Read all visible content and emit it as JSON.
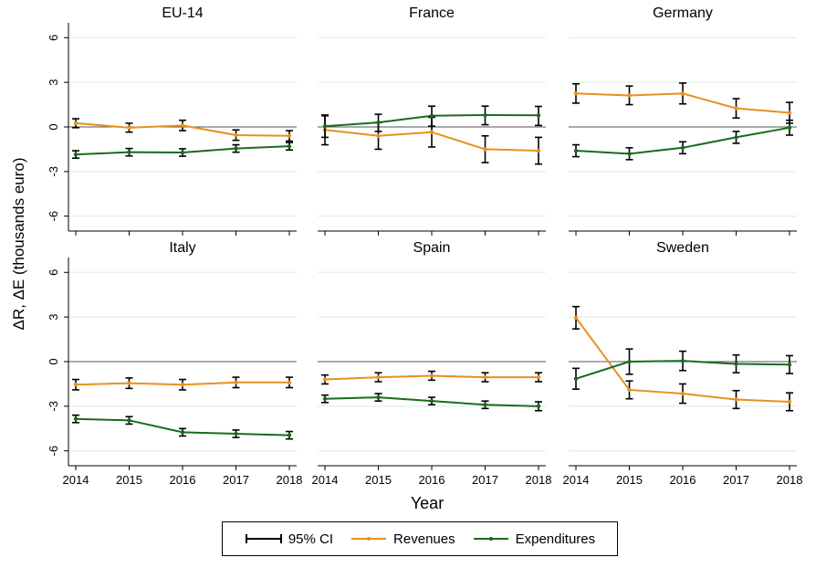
{
  "chart_data": {
    "type": "line",
    "ylabel": "ΔR, ΔE (thousands euro)",
    "xlabel": "Year",
    "x": [
      2014,
      2015,
      2016,
      2017,
      2018
    ],
    "ylim": [
      -7,
      7
    ],
    "yticks": [
      6,
      3,
      0,
      -3,
      -6
    ],
    "ytick_labels": [
      "6",
      "3",
      "0",
      "-3",
      "-6"
    ],
    "xtick_labels": [
      "2014",
      "2015",
      "2016",
      "2017",
      "2018"
    ],
    "colors": {
      "revenues": "#e8901f",
      "expenditures": "#1a6b1a",
      "ci": "#000000",
      "grid": "#e3efe8"
    },
    "legend": {
      "position": "bottom",
      "items": [
        "95% CI",
        "Revenues",
        "Expenditures"
      ]
    },
    "panels": [
      {
        "title": "EU-14",
        "series": [
          {
            "name": "Revenues",
            "values": [
              0.25,
              -0.05,
              0.1,
              -0.55,
              -0.6
            ],
            "ci_low": [
              -0.05,
              -0.35,
              -0.25,
              -0.9,
              -0.95
            ],
            "ci_high": [
              0.55,
              0.25,
              0.45,
              -0.2,
              -0.25
            ]
          },
          {
            "name": "Expenditures",
            "values": [
              -1.85,
              -1.7,
              -1.72,
              -1.45,
              -1.3
            ],
            "ci_low": [
              -2.1,
              -1.95,
              -1.97,
              -1.7,
              -1.55
            ],
            "ci_high": [
              -1.6,
              -1.45,
              -1.47,
              -1.2,
              -1.05
            ]
          }
        ]
      },
      {
        "title": "France",
        "series": [
          {
            "name": "Revenues",
            "values": [
              -0.2,
              -0.6,
              -0.35,
              -1.5,
              -1.6
            ],
            "ci_low": [
              -1.2,
              -1.5,
              -1.35,
              -2.4,
              -2.5
            ],
            "ci_high": [
              0.8,
              0.3,
              0.65,
              -0.6,
              -0.7
            ]
          },
          {
            "name": "Expenditures",
            "values": [
              0.05,
              0.3,
              0.75,
              0.8,
              0.78
            ],
            "ci_low": [
              -0.7,
              -0.3,
              0.05,
              0.15,
              0.1
            ],
            "ci_high": [
              0.75,
              0.85,
              1.4,
              1.4,
              1.38
            ]
          }
        ]
      },
      {
        "title": "Germany",
        "series": [
          {
            "name": "Revenues",
            "values": [
              2.25,
              2.12,
              2.25,
              1.25,
              0.95
            ],
            "ci_low": [
              1.6,
              1.5,
              1.55,
              0.6,
              0.25
            ],
            "ci_high": [
              2.9,
              2.75,
              2.95,
              1.9,
              1.65
            ]
          },
          {
            "name": "Expenditures",
            "values": [
              -1.6,
              -1.8,
              -1.4,
              -0.7,
              -0.05
            ],
            "ci_low": [
              -2.0,
              -2.2,
              -1.8,
              -1.1,
              -0.55
            ],
            "ci_high": [
              -1.2,
              -1.4,
              -1.0,
              -0.3,
              0.45
            ]
          }
        ]
      },
      {
        "title": "Italy",
        "series": [
          {
            "name": "Revenues",
            "values": [
              -1.55,
              -1.45,
              -1.55,
              -1.4,
              -1.4
            ],
            "ci_low": [
              -1.9,
              -1.8,
              -1.9,
              -1.75,
              -1.75
            ],
            "ci_high": [
              -1.2,
              -1.1,
              -1.2,
              -1.05,
              -1.05
            ]
          },
          {
            "name": "Expenditures",
            "values": [
              -3.85,
              -3.95,
              -4.75,
              -4.85,
              -4.95
            ],
            "ci_low": [
              -4.1,
              -4.2,
              -5.0,
              -5.1,
              -5.2
            ],
            "ci_high": [
              -3.6,
              -3.7,
              -4.5,
              -4.6,
              -4.7
            ]
          }
        ]
      },
      {
        "title": "Spain",
        "series": [
          {
            "name": "Revenues",
            "values": [
              -1.2,
              -1.05,
              -0.95,
              -1.05,
              -1.05
            ],
            "ci_low": [
              -1.5,
              -1.35,
              -1.25,
              -1.35,
              -1.35
            ],
            "ci_high": [
              -0.9,
              -0.75,
              -0.65,
              -0.75,
              -0.75
            ]
          },
          {
            "name": "Expenditures",
            "values": [
              -2.5,
              -2.4,
              -2.65,
              -2.9,
              -3.0
            ],
            "ci_low": [
              -2.75,
              -2.65,
              -2.9,
              -3.15,
              -3.3
            ],
            "ci_high": [
              -2.25,
              -2.15,
              -2.4,
              -2.65,
              -2.7
            ]
          }
        ]
      },
      {
        "title": "Sweden",
        "series": [
          {
            "name": "Revenues",
            "values": [
              2.95,
              -1.9,
              -2.15,
              -2.55,
              -2.7
            ],
            "ci_low": [
              2.2,
              -2.5,
              -2.8,
              -3.15,
              -3.3
            ],
            "ci_high": [
              3.7,
              -1.3,
              -1.5,
              -1.95,
              -2.1
            ]
          },
          {
            "name": "Expenditures",
            "values": [
              -1.15,
              0.0,
              0.05,
              -0.15,
              -0.2
            ],
            "ci_low": [
              -1.85,
              -0.85,
              -0.6,
              -0.75,
              -0.8
            ],
            "ci_high": [
              -0.45,
              0.85,
              0.7,
              0.45,
              0.4
            ]
          }
        ]
      }
    ]
  }
}
